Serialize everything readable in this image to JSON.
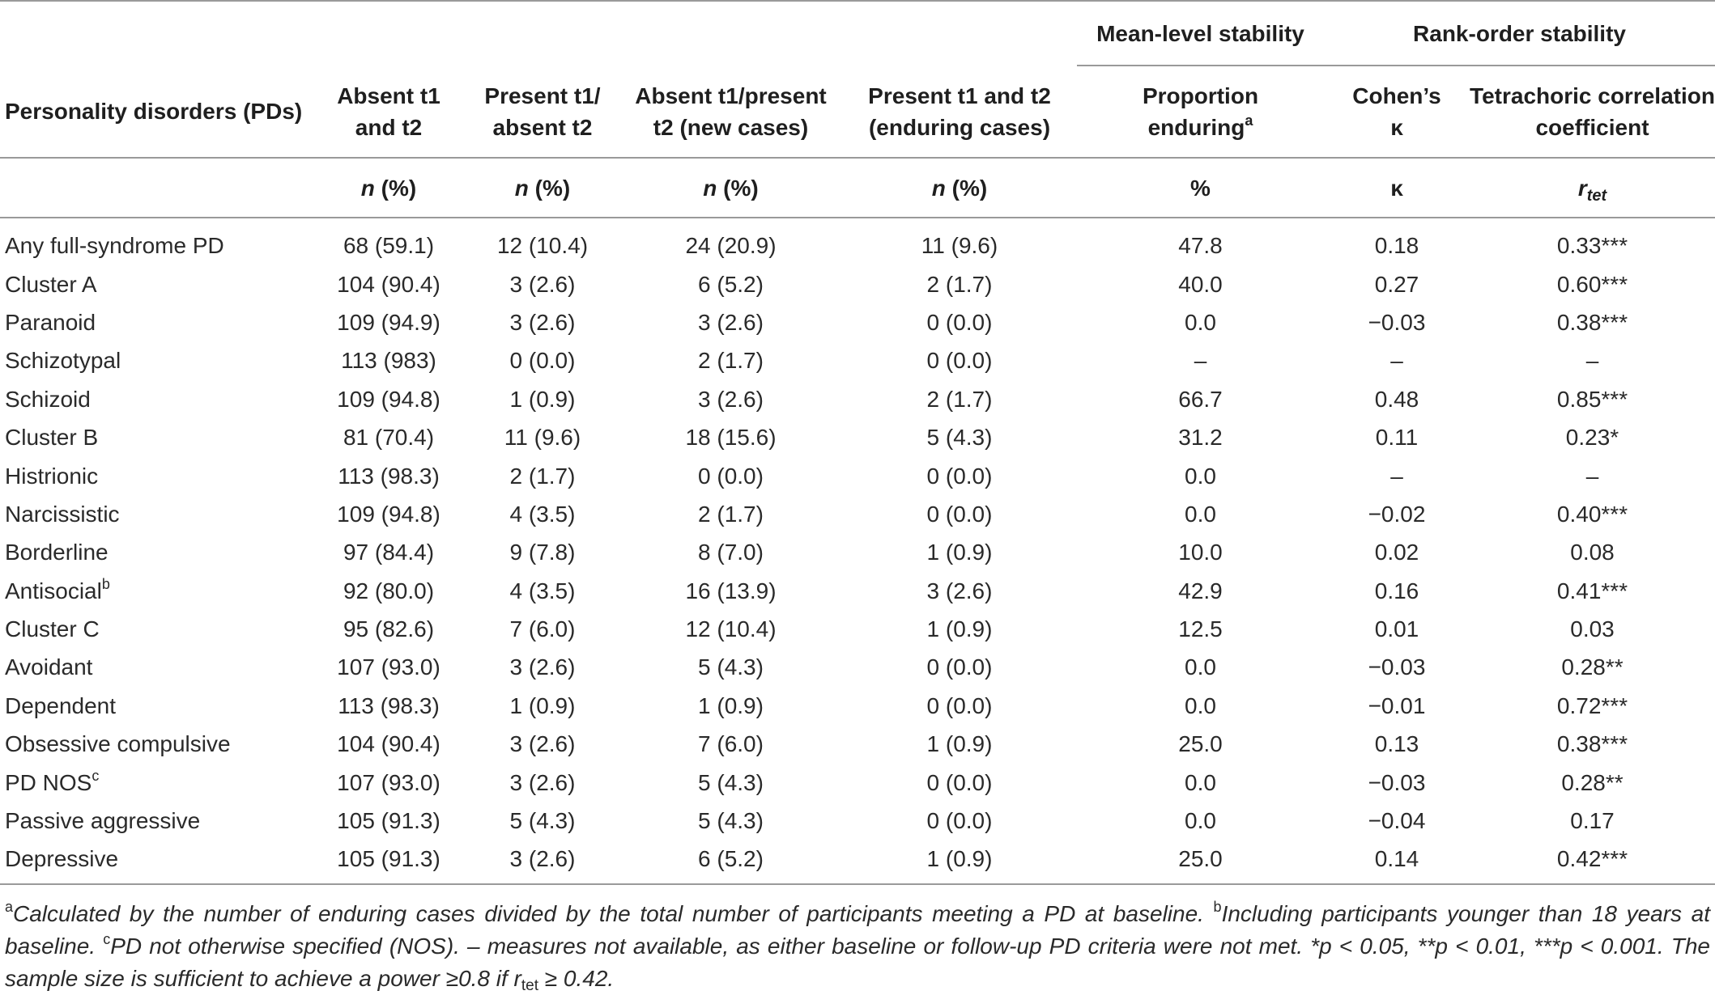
{
  "header": {
    "group_mean": "Mean-level stability",
    "group_rank": "Rank-order stability",
    "col_pd": "Personality disorders (PDs)",
    "col_absent_both_1": "Absent t1",
    "col_absent_both_2": "and t2",
    "col_present_absent_1": "Present t1/",
    "col_present_absent_2": "absent t2",
    "col_new_1": "Absent t1/present",
    "col_new_2": "t2 (new cases)",
    "col_enduring_1": "Present t1 and t2",
    "col_enduring_2": "(enduring cases)",
    "col_prop_1": "Proportion",
    "col_prop_2": "enduring",
    "col_prop_sup": "a",
    "col_kappa_1": "Cohen’s",
    "col_kappa_2": "κ",
    "col_tet_1": "Tetrachoric correlation",
    "col_tet_2": "coefficient"
  },
  "units": {
    "n": "n",
    "pct": "(%)",
    "percent": "%",
    "kappa": "κ",
    "r": "r",
    "tet": "tet"
  },
  "rows": [
    {
      "name": "Any full-syndrome PD",
      "sup": "",
      "a": "68 (59.1)",
      "b": "12 (10.4)",
      "c": "24 (20.9)",
      "d": "11 (9.6)",
      "p": "47.8",
      "k": "0.18",
      "r": "0.33***"
    },
    {
      "name": "Cluster A",
      "sup": "",
      "a": "104 (90.4)",
      "b": "3 (2.6)",
      "c": "6 (5.2)",
      "d": "2 (1.7)",
      "p": "40.0",
      "k": "0.27",
      "r": "0.60***"
    },
    {
      "name": "Paranoid",
      "sup": "",
      "a": "109 (94.9)",
      "b": "3 (2.6)",
      "c": "3 (2.6)",
      "d": "0 (0.0)",
      "p": "0.0",
      "k": "−0.03",
      "r": "0.38***"
    },
    {
      "name": "Schizotypal",
      "sup": "",
      "a": "113 (983)",
      "b": "0 (0.0)",
      "c": "2 (1.7)",
      "d": "0 (0.0)",
      "p": "–",
      "k": "–",
      "r": "–"
    },
    {
      "name": "Schizoid",
      "sup": "",
      "a": "109 (94.8)",
      "b": "1 (0.9)",
      "c": "3 (2.6)",
      "d": "2 (1.7)",
      "p": "66.7",
      "k": "0.48",
      "r": "0.85***"
    },
    {
      "name": "Cluster B",
      "sup": "",
      "a": "81 (70.4)",
      "b": "11 (9.6)",
      "c": "18 (15.6)",
      "d": "5 (4.3)",
      "p": "31.2",
      "k": "0.11",
      "r": "0.23*"
    },
    {
      "name": "Histrionic",
      "sup": "",
      "a": "113 (98.3)",
      "b": "2 (1.7)",
      "c": "0 (0.0)",
      "d": "0 (0.0)",
      "p": "0.0",
      "k": "–",
      "r": "–"
    },
    {
      "name": "Narcissistic",
      "sup": "",
      "a": "109 (94.8)",
      "b": "4 (3.5)",
      "c": "2 (1.7)",
      "d": "0 (0.0)",
      "p": "0.0",
      "k": "−0.02",
      "r": "0.40***"
    },
    {
      "name": "Borderline",
      "sup": "",
      "a": "97 (84.4)",
      "b": "9 (7.8)",
      "c": "8 (7.0)",
      "d": "1 (0.9)",
      "p": "10.0",
      "k": "0.02",
      "r": "0.08"
    },
    {
      "name": "Antisocial",
      "sup": "b",
      "a": "92 (80.0)",
      "b": "4 (3.5)",
      "c": "16 (13.9)",
      "d": "3 (2.6)",
      "p": "42.9",
      "k": "0.16",
      "r": "0.41***"
    },
    {
      "name": "Cluster C",
      "sup": "",
      "a": "95 (82.6)",
      "b": "7 (6.0)",
      "c": "12 (10.4)",
      "d": "1 (0.9)",
      "p": "12.5",
      "k": "0.01",
      "r": "0.03"
    },
    {
      "name": "Avoidant",
      "sup": "",
      "a": "107 (93.0)",
      "b": "3 (2.6)",
      "c": "5 (4.3)",
      "d": "0 (0.0)",
      "p": "0.0",
      "k": "−0.03",
      "r": "0.28**"
    },
    {
      "name": "Dependent",
      "sup": "",
      "a": "113 (98.3)",
      "b": "1 (0.9)",
      "c": "1 (0.9)",
      "d": "0 (0.0)",
      "p": "0.0",
      "k": "−0.01",
      "r": "0.72***"
    },
    {
      "name": "Obsessive compulsive",
      "sup": "",
      "a": "104 (90.4)",
      "b": "3 (2.6)",
      "c": "7 (6.0)",
      "d": "1 (0.9)",
      "p": "25.0",
      "k": "0.13",
      "r": "0.38***"
    },
    {
      "name": "PD NOS",
      "sup": "c",
      "a": "107 (93.0)",
      "b": "3 (2.6)",
      "c": "5 (4.3)",
      "d": "0 (0.0)",
      "p": "0.0",
      "k": "−0.03",
      "r": "0.28**"
    },
    {
      "name": "Passive aggressive",
      "sup": "",
      "a": "105 (91.3)",
      "b": "5 (4.3)",
      "c": "5 (4.3)",
      "d": "0 (0.0)",
      "p": "0.0",
      "k": "−0.04",
      "r": "0.17"
    },
    {
      "name": "Depressive",
      "sup": "",
      "a": "105 (91.3)",
      "b": "3 (2.6)",
      "c": "6 (5.2)",
      "d": "1 (0.9)",
      "p": "25.0",
      "k": "0.14",
      "r": "0.42***"
    }
  ],
  "footnote": {
    "a_mark": "a",
    "a_text": "Calculated by the number of enduring cases divided by the total number of participants meeting a PD at baseline.",
    "b_mark": "b",
    "b_text": "Including participants younger than 18 years at baseline.",
    "c_mark": "c",
    "c_text": "PD not otherwise specified (NOS). – measures not available, as either baseline or follow-up PD criteria were not met. *p < 0.05, **p < 0.01, ***p < 0.001. The sample size is sufficient to achieve a power ≥0.8 if r",
    "sub": "tet",
    "tail": " ≥ 0.42."
  }
}
